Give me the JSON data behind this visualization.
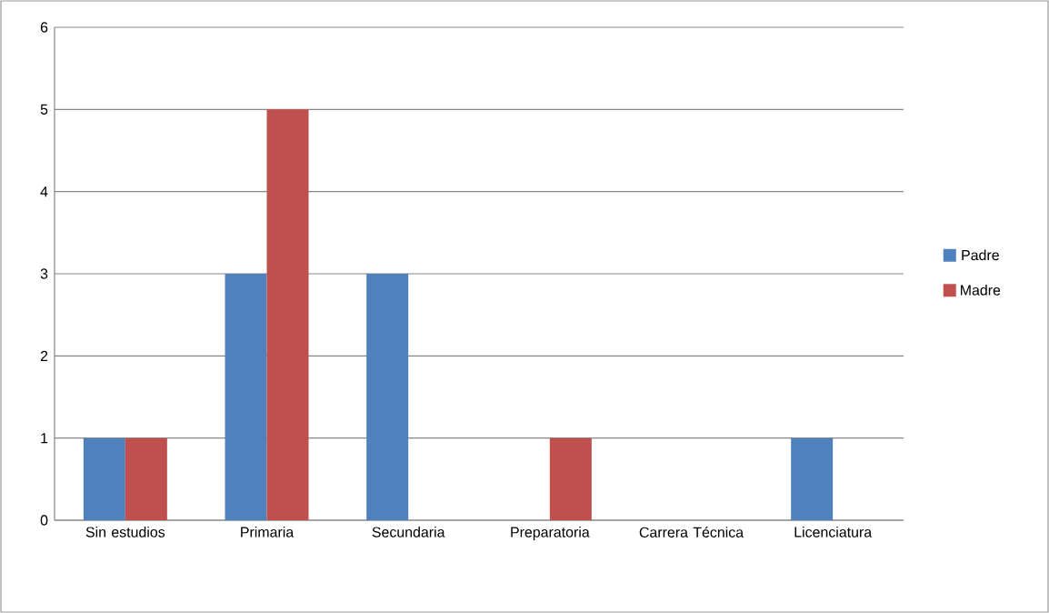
{
  "chart_data": {
    "type": "bar",
    "categories": [
      "Sin estudios",
      "Primaria",
      "Secundaria",
      "Preparatoria",
      "Carrera Técnica",
      "Licenciatura"
    ],
    "series": [
      {
        "name": "Padre",
        "color": "#4f81bd",
        "values": [
          1,
          3,
          3,
          0,
          0,
          1
        ]
      },
      {
        "name": "Madre",
        "color": "#c0504d",
        "values": [
          1,
          5,
          0,
          1,
          0,
          0
        ]
      }
    ],
    "ylim": [
      0,
      6
    ],
    "yticks": [
      0,
      1,
      2,
      3,
      4,
      5,
      6
    ],
    "grid": "y",
    "legend": "right"
  }
}
